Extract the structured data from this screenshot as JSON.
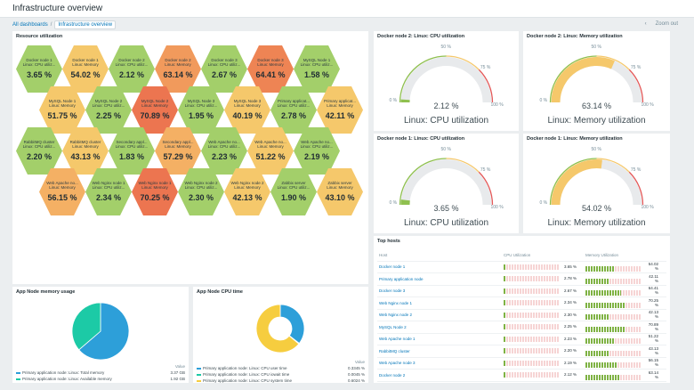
{
  "header": {
    "title": "Infrastructure overview"
  },
  "breadcrumb": {
    "all": "All dashboards",
    "current": "Infrastructure overview"
  },
  "nav": {
    "prev_icon": "chevron-left-icon",
    "zoom": "Zoom out"
  },
  "honeycomb": {
    "title": "Resource utilization",
    "cells": [
      {
        "name1": "Docker node 1",
        "name2": "Linux: CPU utiliz...",
        "value": "3.65 %",
        "color": "#a3cf6a"
      },
      {
        "name1": "Docker node 1",
        "name2": "Linux: Memory",
        "value": "54.02 %",
        "color": "#f5c86b"
      },
      {
        "name1": "Docker node 2",
        "name2": "Linux: CPU utiliz...",
        "value": "2.12 %",
        "color": "#a3cf6a"
      },
      {
        "name1": "Docker node 2",
        "name2": "Linux: Memory",
        "value": "63.14 %",
        "color": "#f19a5c"
      },
      {
        "name1": "Docker node 3",
        "name2": "Linux: CPU utiliz...",
        "value": "2.67 %",
        "color": "#a3cf6a"
      },
      {
        "name1": "Docker node 3",
        "name2": "Linux: Memory",
        "value": "64.41 %",
        "color": "#ee8454"
      },
      {
        "name1": "MySQL Node 1",
        "name2": "Linux: CPU utiliz...",
        "value": "1.58 %",
        "color": "#a3cf6a"
      },
      {
        "name1": "MySQL Node 1",
        "name2": "Linux: Memory",
        "value": "51.75 %",
        "color": "#f5c86b"
      },
      {
        "name1": "MySQL Node 2",
        "name2": "Linux: CPU utiliz...",
        "value": "2.25 %",
        "color": "#a3cf6a"
      },
      {
        "name1": "MySQL Node 2",
        "name2": "Linux: Memory",
        "value": "70.89 %",
        "color": "#ec7550"
      },
      {
        "name1": "MySQL Node 3",
        "name2": "Linux: CPU utiliz...",
        "value": "1.95 %",
        "color": "#a3cf6a"
      },
      {
        "name1": "MySQL Node 3",
        "name2": "Linux: Memory",
        "value": "40.19 %",
        "color": "#f5c86b"
      },
      {
        "name1": "Primary applicat...",
        "name2": "Linux: CPU utiliz...",
        "value": "2.78 %",
        "color": "#a3cf6a"
      },
      {
        "name1": "Primary applicat...",
        "name2": "Linux: Memory",
        "value": "42.11 %",
        "color": "#f5c86b"
      },
      {
        "name1": "RabbitMQ cluster",
        "name2": "Linux: CPU utiliz...",
        "value": "2.20 %",
        "color": "#a3cf6a"
      },
      {
        "name1": "RabbitMQ cluster",
        "name2": "Linux: Memory",
        "value": "43.13 %",
        "color": "#f5c86b"
      },
      {
        "name1": "Secondary appl...",
        "name2": "Linux: CPU utiliz...",
        "value": "1.83 %",
        "color": "#a3cf6a"
      },
      {
        "name1": "Secondary appl...",
        "name2": "Linux: Memory",
        "value": "57.29 %",
        "color": "#f4b064"
      },
      {
        "name1": "Web Apache no...",
        "name2": "Linux: CPU utiliz...",
        "value": "2.23 %",
        "color": "#a3cf6a"
      },
      {
        "name1": "Web Apache no...",
        "name2": "Linux: Memory",
        "value": "51.22 %",
        "color": "#f5c86b"
      },
      {
        "name1": "Web Apache no...",
        "name2": "Linux: CPU utiliz...",
        "value": "2.19 %",
        "color": "#a3cf6a"
      },
      {
        "name1": "Web Apache no...",
        "name2": "Linux: Memory",
        "value": "56.15 %",
        "color": "#f4b064"
      },
      {
        "name1": "Web Nginx node 1",
        "name2": "Linux: CPU utiliz...",
        "value": "2.34 %",
        "color": "#a3cf6a"
      },
      {
        "name1": "Web Nginx node 1",
        "name2": "Linux: Memory",
        "value": "70.25 %",
        "color": "#ec7550"
      },
      {
        "name1": "Web Nginx node 2",
        "name2": "Linux: CPU utiliz...",
        "value": "2.30 %",
        "color": "#a3cf6a"
      },
      {
        "name1": "Web Nginx node 2",
        "name2": "Linux: Memory",
        "value": "42.13 %",
        "color": "#f5c86b"
      },
      {
        "name1": "Zabbix server",
        "name2": "Linux: CPU utiliz...",
        "value": "1.90 %",
        "color": "#a3cf6a"
      },
      {
        "name1": "Zabbix server",
        "name2": "Linux: Memory",
        "value": "43.10 %",
        "color": "#f5c86b"
      }
    ]
  },
  "gauges": [
    {
      "title": "Docker node 2: Linux: CPU utilization",
      "value": "2.12 %",
      "fraction": 0.0212,
      "label": "Linux: CPU utilization",
      "min": "0 %",
      "mid": "50 %",
      "warn": "75 %",
      "max": "100 %",
      "color": "#8fc04f"
    },
    {
      "title": "Docker node 2: Linux: Memory utilization",
      "value": "63.14 %",
      "fraction": 0.6314,
      "label": "Linux: Memory utilization",
      "min": "0 %",
      "mid": "50 %",
      "warn": "75 %",
      "max": "100 %",
      "color": "#f5c86b"
    },
    {
      "title": "Docker node 1: Linux: CPU utilization",
      "value": "3.65 %",
      "fraction": 0.0365,
      "label": "Linux: CPU utilization",
      "min": "0 %",
      "mid": "50 %",
      "warn": "75 %",
      "max": "100 %",
      "color": "#8fc04f"
    },
    {
      "title": "Docker node 1: Linux: Memory utilization",
      "value": "54.02 %",
      "fraction": 0.5402,
      "label": "Linux: Memory utilization",
      "min": "0 %",
      "mid": "50 %",
      "warn": "75 %",
      "max": "100 %",
      "color": "#f5c86b"
    }
  ],
  "top_hosts": {
    "title": "Top hosts",
    "columns": [
      "Host",
      "CPU Utilization",
      "Memory Utilization"
    ],
    "rows": [
      {
        "host": "Docker node 1",
        "cpu": "3.65 %",
        "cpu_frac": 0.0365,
        "mem": "54.02 %",
        "mem_frac": 0.5402
      },
      {
        "host": "Primary application node",
        "cpu": "2.78 %",
        "cpu_frac": 0.0278,
        "mem": "42.11 %",
        "mem_frac": 0.4211
      },
      {
        "host": "Docker node 3",
        "cpu": "2.67 %",
        "cpu_frac": 0.0267,
        "mem": "64.41 %",
        "mem_frac": 0.6441
      },
      {
        "host": "Web Nginx node 1",
        "cpu": "2.34 %",
        "cpu_frac": 0.0234,
        "mem": "70.25 %",
        "mem_frac": 0.7025
      },
      {
        "host": "Web Nginx node 2",
        "cpu": "2.30 %",
        "cpu_frac": 0.023,
        "mem": "42.13 %",
        "mem_frac": 0.4213
      },
      {
        "host": "MySQL Node 2",
        "cpu": "2.25 %",
        "cpu_frac": 0.0225,
        "mem": "70.89 %",
        "mem_frac": 0.7089
      },
      {
        "host": "Web Apache node 1",
        "cpu": "2.23 %",
        "cpu_frac": 0.0223,
        "mem": "51.22 %",
        "mem_frac": 0.5122
      },
      {
        "host": "RabbitMQ cluster",
        "cpu": "2.20 %",
        "cpu_frac": 0.022,
        "mem": "43.13 %",
        "mem_frac": 0.4313
      },
      {
        "host": "Web Apache node 3",
        "cpu": "2.19 %",
        "cpu_frac": 0.0219,
        "mem": "56.15 %",
        "mem_frac": 0.5615
      },
      {
        "host": "Docker node 2",
        "cpu": "2.12 %",
        "cpu_frac": 0.0212,
        "mem": "63.14 %",
        "mem_frac": 0.6314
      }
    ]
  },
  "pie_memory": {
    "title": "App Node memory usage",
    "value_header": "Value",
    "items": [
      {
        "label": "Primary application node: Linux: Total memory",
        "value": "3.37 GB",
        "num": 3.37,
        "color": "#2d9fd9"
      },
      {
        "label": "Primary application node: Linux: Available memory",
        "value": "1.92 GB",
        "num": 1.92,
        "color": "#1ccaa6"
      }
    ]
  },
  "pie_cpu": {
    "title": "App Node CPU time",
    "value_header": "Value",
    "items": [
      {
        "label": "Primary application node: Linux: CPU user time",
        "value": "0.3345 %",
        "num": 0.3345,
        "color": "#2d9fd9"
      },
      {
        "label": "Primary application node: Linux: CPU iowait time",
        "value": "0.0045 %",
        "num": 0.0045,
        "color": "#1ccaa6"
      },
      {
        "label": "Primary application node: Linux: CPU system time",
        "value": "0.6024 %",
        "num": 0.6024,
        "color": "#f6cd3f"
      }
    ]
  }
}
